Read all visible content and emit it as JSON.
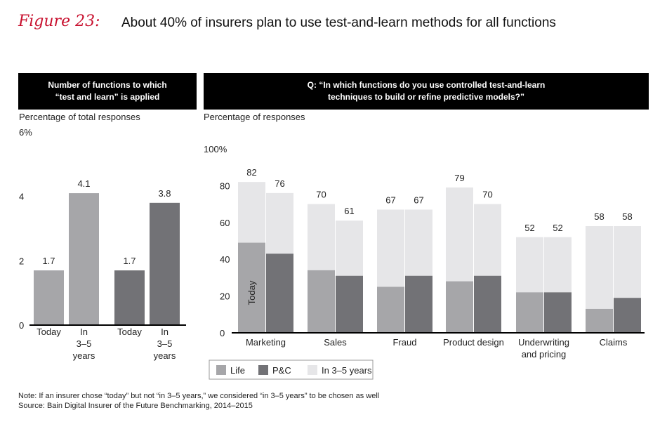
{
  "figure": {
    "label": "Figure 23:",
    "title": "About 40% of insurers plan to use test-and-learn methods for all functions"
  },
  "left_panel": {
    "header_line1": "Number of functions to which",
    "header_line2": "“test and learn” is applied",
    "subtitle": "Percentage of total responses"
  },
  "right_panel": {
    "header_line1": "Q: “In which functions do you use controlled test-and-learn",
    "header_line2": "techniques to build or refine predictive models?”",
    "subtitle": "Percentage of responses"
  },
  "colors": {
    "life": "#a6a6a9",
    "pc": "#727276",
    "future": "#e6e6e8",
    "accent": "#c8102e"
  },
  "chart_data": [
    {
      "type": "bar",
      "title": "Number of functions to which “test and learn” is applied",
      "ylabel": "Percentage of total responses",
      "ylim": [
        0,
        6
      ],
      "y_ticks": [
        "0",
        "2",
        "4",
        "6%"
      ],
      "grid": false,
      "bars": [
        {
          "group": "Life",
          "category": "Today",
          "value": 1.7,
          "label": "1.7"
        },
        {
          "group": "Life",
          "category": "In 3–5 years",
          "value": 4.1,
          "label": "4.1"
        },
        {
          "group": "P&C",
          "category": "Today",
          "value": 1.7,
          "label": "1.7"
        },
        {
          "group": "P&C",
          "category": "In 3–5 years",
          "value": 3.8,
          "label": "3.8"
        }
      ],
      "x_labels": [
        [
          "Today"
        ],
        [
          "In",
          "3–5",
          "years"
        ],
        [
          "Today"
        ],
        [
          "In",
          "3–5",
          "years"
        ]
      ]
    },
    {
      "type": "bar",
      "title": "Q: “In which functions do you use controlled test-and-learn techniques to build or refine predictive models?”",
      "ylabel": "Percentage of responses",
      "ylim": [
        0,
        100
      ],
      "y_ticks": [
        "0",
        "20",
        "40",
        "60",
        "80",
        "100%"
      ],
      "stacked": true,
      "grid": false,
      "legend": {
        "placement": "bottom-left",
        "entries": [
          "Life",
          "P&C",
          "In 3–5 years"
        ]
      },
      "annotation": "Today",
      "categories": [
        {
          "label": [
            "Marketing"
          ],
          "bars": [
            {
              "segment": "Life",
              "today": 49,
              "total": 82,
              "label": "82"
            },
            {
              "segment": "P&C",
              "today": 43,
              "total": 76,
              "label": "76"
            }
          ]
        },
        {
          "label": [
            "Sales"
          ],
          "bars": [
            {
              "segment": "Life",
              "today": 34,
              "total": 70,
              "label": "70"
            },
            {
              "segment": "P&C",
              "today": 31,
              "total": 61,
              "label": "61"
            }
          ]
        },
        {
          "label": [
            "Fraud"
          ],
          "bars": [
            {
              "segment": "Life",
              "today": 25,
              "total": 67,
              "label": "67"
            },
            {
              "segment": "P&C",
              "today": 31,
              "total": 67,
              "label": "67"
            }
          ]
        },
        {
          "label": [
            "Product design"
          ],
          "bars": [
            {
              "segment": "Life",
              "today": 28,
              "total": 79,
              "label": "79"
            },
            {
              "segment": "P&C",
              "today": 31,
              "total": 70,
              "label": "70"
            }
          ]
        },
        {
          "label": [
            "Underwriting",
            "and pricing"
          ],
          "bars": [
            {
              "segment": "Life",
              "today": 22,
              "total": 52,
              "label": "52"
            },
            {
              "segment": "P&C",
              "today": 22,
              "total": 52,
              "label": "52"
            }
          ]
        },
        {
          "label": [
            "Claims"
          ],
          "bars": [
            {
              "segment": "Life",
              "today": 13,
              "total": 58,
              "label": "58"
            },
            {
              "segment": "P&C",
              "today": 19,
              "total": 58,
              "label": "58"
            }
          ]
        }
      ]
    }
  ],
  "notes": {
    "note": "Note: If an insurer chose “today” but not “in 3–5 years,” we considered “in 3–5 years” to be chosen as well",
    "source": "Source: Bain Digital Insurer of the Future Benchmarking, 2014–2015"
  }
}
